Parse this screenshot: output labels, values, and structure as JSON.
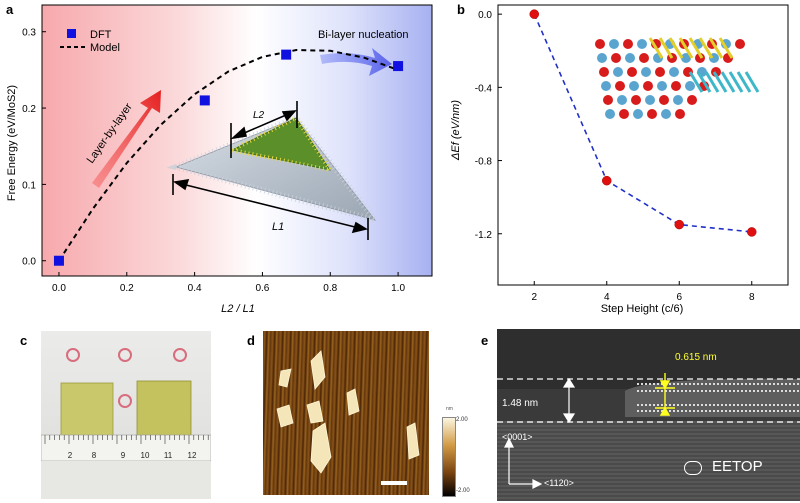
{
  "panel_labels": {
    "a": "a",
    "b": "b",
    "c": "c",
    "d": "d",
    "e": "e"
  },
  "chart_data": [
    {
      "panel": "a",
      "type": "scatter",
      "xlabel": "L2 / L1",
      "ylabel": "Free Energy (eV/MoS2)",
      "xlim": [
        -0.05,
        1.1
      ],
      "ylim": [
        -0.02,
        0.335
      ],
      "xticks": [
        "0.0",
        "0.2",
        "0.4",
        "0.6",
        "0.8",
        "1.0"
      ],
      "yticks": [
        "0.0",
        "0.1",
        "0.2",
        "0.3"
      ],
      "legend": {
        "placement": "top-left",
        "entries": [
          "DFT",
          "Model"
        ]
      },
      "series": [
        {
          "name": "DFT",
          "style": "square",
          "color": "#1010e0",
          "x": [
            0.0,
            0.43,
            0.67,
            1.0
          ],
          "y": [
            0.0,
            0.21,
            0.27,
            0.255
          ]
        },
        {
          "name": "Model",
          "style": "dashed-line",
          "color": "#000000",
          "x": [
            0.0,
            0.1,
            0.2,
            0.3,
            0.4,
            0.5,
            0.6,
            0.7,
            0.8,
            0.9,
            1.0
          ],
          "y": [
            0.0,
            0.068,
            0.128,
            0.178,
            0.218,
            0.248,
            0.267,
            0.276,
            0.275,
            0.266,
            0.25
          ]
        }
      ],
      "annotations": [
        "Layer-by-layer",
        "Bi-layer nucleation",
        "L2",
        "L1"
      ]
    },
    {
      "panel": "b",
      "type": "scatter",
      "xlabel": "Step Height (c/6)",
      "ylabel": "ΔEf (eV/nm)",
      "xlim": [
        1,
        9
      ],
      "ylim": [
        -1.48,
        0.05
      ],
      "xticks": [
        "2",
        "4",
        "6",
        "8"
      ],
      "yticks": [
        "0.0",
        "-0.4",
        "-0.8",
        "-1.2"
      ],
      "series": [
        {
          "style": "red-ball-dashed-blue-line",
          "color": "#e01010",
          "x": [
            2,
            4,
            6,
            8
          ],
          "y": [
            0.0,
            -0.91,
            -1.15,
            -1.19
          ]
        }
      ]
    }
  ],
  "panel_d": {
    "colorbar_top": "2.00",
    "colorbar_bottom": "-2.00",
    "colorbar_unit": "nm"
  },
  "panel_e": {
    "interlayer_label": "0.615 nm",
    "step_label": "1.48 nm",
    "axis1": "<0001>",
    "axis2": "<1120>",
    "watermark": "EETOP"
  },
  "panel_c": {
    "ruler_numbers": [
      "2",
      "8",
      "9",
      "10",
      "11",
      "12"
    ]
  },
  "colors": {
    "pink_bg": "#f8b8b8",
    "blue_bg": "#aab4f2",
    "dft_blue": "#1010e0",
    "red_ball": "#e01010",
    "dash_blue": "#2030c8"
  }
}
